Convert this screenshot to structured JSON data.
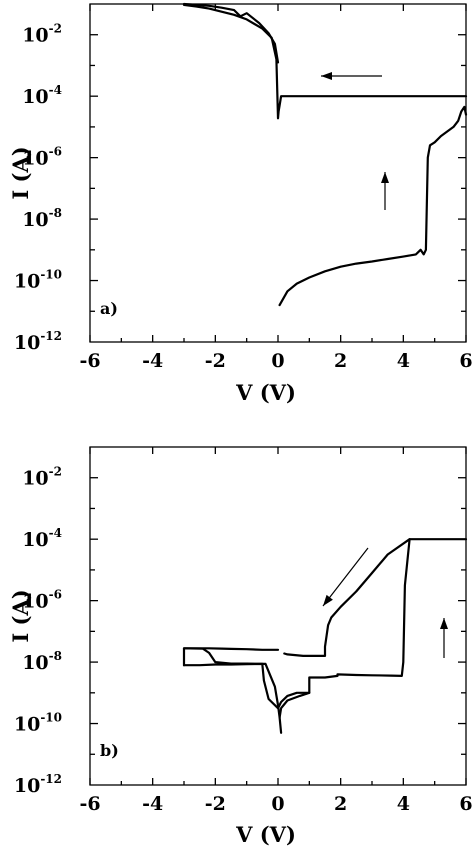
{
  "chart_data": [
    {
      "type": "line",
      "panel_label": "a)",
      "xlabel": "V (V)",
      "ylabel": "I (A)",
      "xlim": [
        -6,
        6
      ],
      "ylim_log10": [
        -12,
        -1
      ],
      "log_y": true,
      "x_ticks": [
        "-6",
        "-4",
        "-2",
        "0",
        "2",
        "4",
        "6"
      ],
      "y_ticks": [
        {
          "base": "10",
          "exp": "-12",
          "value": -12
        },
        {
          "base": "10",
          "exp": "-10",
          "value": -10
        },
        {
          "base": "10",
          "exp": "-8",
          "value": -8
        },
        {
          "base": "10",
          "exp": "-6",
          "value": -6
        },
        {
          "base": "10",
          "exp": "-4",
          "value": -4
        },
        {
          "base": "10",
          "exp": "-2",
          "value": -2
        }
      ],
      "series": [
        {
          "x": [
            0.05,
            0.3,
            0.6,
            1.0,
            1.5,
            2.0,
            2.5,
            3.0,
            3.5,
            4.0,
            4.4,
            4.55,
            4.65,
            4.72,
            4.78,
            4.85,
            5.0,
            5.2,
            5.4,
            5.6,
            5.75,
            5.85,
            5.95,
            6.0
          ],
          "log10_y": [
            -10.8,
            -10.35,
            -10.1,
            -9.9,
            -9.7,
            -9.55,
            -9.45,
            -9.38,
            -9.3,
            -9.22,
            -9.15,
            -9.0,
            -9.15,
            -9.0,
            -6.0,
            -5.6,
            -5.5,
            -5.3,
            -5.15,
            -5.0,
            -4.8,
            -4.5,
            -4.35,
            -4.6
          ]
        },
        {
          "x": [
            6.0,
            4.0,
            2.0,
            0.1,
            0.05,
            0.02,
            0.0,
            -0.05,
            -0.2,
            -0.5,
            -1.0,
            -1.4,
            -1.8,
            -2.2,
            -2.6,
            -3.0
          ],
          "log10_y": [
            -4.0,
            -4.0,
            -4.0,
            -4.0,
            -4.3,
            -4.5,
            -4.72,
            -2.8,
            -2.1,
            -1.8,
            -1.5,
            -1.35,
            -1.25,
            -1.15,
            -1.08,
            -1.03
          ]
        },
        {
          "x": [
            0.0,
            -0.1,
            -0.3,
            -0.6,
            -1.0,
            -1.2,
            -1.4,
            -1.8,
            -2.2,
            -3.0
          ],
          "log10_y": [
            -2.9,
            -2.3,
            -1.95,
            -1.62,
            -1.3,
            -1.4,
            -1.2,
            -1.12,
            -1.06,
            -1.0
          ]
        }
      ],
      "annotations": [
        {
          "type": "arrow",
          "direction": "left"
        },
        {
          "type": "arrow",
          "direction": "up"
        }
      ]
    },
    {
      "type": "line",
      "panel_label": "b)",
      "xlabel": "V (V)",
      "ylabel": "I (A)",
      "xlim": [
        -6,
        6
      ],
      "ylim_log10": [
        -12,
        -1
      ],
      "log_y": true,
      "x_ticks": [
        "-6",
        "-4",
        "-2",
        "0",
        "2",
        "4",
        "6"
      ],
      "y_ticks": [
        {
          "base": "10",
          "exp": "-12",
          "value": -12
        },
        {
          "base": "10",
          "exp": "-10",
          "value": -10
        },
        {
          "base": "10",
          "exp": "-8",
          "value": -8
        },
        {
          "base": "10",
          "exp": "-6",
          "value": -6
        },
        {
          "base": "10",
          "exp": "-4",
          "value": -4
        },
        {
          "base": "10",
          "exp": "-2",
          "value": -2
        }
      ],
      "series": [
        {
          "x": [
            0.05,
            0.1,
            0.3,
            0.7,
            1.0,
            1.0,
            1.5,
            1.9,
            1.9,
            2.5,
            3.0,
            3.6,
            3.95,
            4.0,
            4.05,
            4.2,
            4.4,
            5.0,
            6.0
          ],
          "log10_y": [
            -9.8,
            -9.5,
            -9.25,
            -9.1,
            -9.0,
            -8.5,
            -8.5,
            -8.45,
            -8.4,
            -8.42,
            -8.43,
            -8.44,
            -8.45,
            -8.0,
            -5.5,
            -4.0,
            -4.0,
            -4.0,
            -4.0
          ]
        },
        {
          "x": [
            4.2,
            3.5,
            3.0,
            2.5,
            2.0,
            1.7,
            1.6,
            1.5,
            1.5,
            1.2,
            0.8,
            0.3,
            0.2
          ],
          "log10_y": [
            -4.0,
            -4.5,
            -5.1,
            -5.7,
            -6.2,
            -6.55,
            -6.8,
            -7.5,
            -7.8,
            -7.8,
            -7.8,
            -7.75,
            -7.72
          ]
        },
        {
          "x": [
            0.0,
            -0.5,
            -1.0,
            -1.5,
            -1.8,
            -2.2,
            -2.6,
            -3.0,
            -3.0
          ],
          "log10_y": [
            -7.6,
            -7.6,
            -7.58,
            -7.57,
            -7.56,
            -7.55,
            -7.55,
            -7.55,
            -8.1
          ]
        },
        {
          "x": [
            -3.0,
            -2.5,
            -2.0,
            -1.5,
            -1.0,
            -0.5,
            -0.45,
            -0.3,
            0.0,
            0.1,
            0.3,
            0.6,
            1.0
          ],
          "log10_y": [
            -8.1,
            -8.1,
            -8.08,
            -8.08,
            -8.07,
            -8.06,
            -8.6,
            -9.2,
            -9.5,
            -9.3,
            -9.1,
            -9.0,
            -9.0
          ]
        },
        {
          "x": [
            -3.0,
            -2.4,
            -2.2,
            -2.0,
            -1.5,
            -1.0,
            -0.4,
            -0.1,
            0.0,
            0.05,
            0.1
          ],
          "log10_y": [
            -7.55,
            -7.56,
            -7.7,
            -8.0,
            -8.05,
            -8.05,
            -8.06,
            -8.8,
            -9.4,
            -9.8,
            -10.3
          ]
        }
      ],
      "annotations": [
        {
          "type": "arrow",
          "direction": "down-left"
        },
        {
          "type": "arrow",
          "direction": "up"
        }
      ]
    }
  ]
}
